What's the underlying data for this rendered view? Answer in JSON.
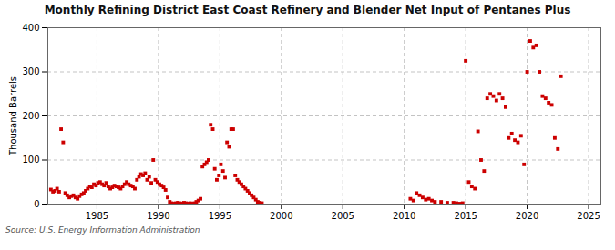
{
  "chart_data": {
    "type": "scatter",
    "title": "Monthly Refining District East Coast Refinery and Blender Net Input of Pentanes Plus",
    "ylabel": "Thousand Barrels",
    "annotations": [
      "Source: U.S. Energy Information Administration"
    ],
    "color": "#cc0000",
    "marker": "square",
    "grid": true,
    "xlim": [
      1981.0,
      2026.0
    ],
    "ylim": [
      0,
      400
    ],
    "xticks": [
      1985,
      1990,
      1995,
      2000,
      2005,
      2010,
      2015,
      2020,
      2025
    ],
    "yticks": [
      0,
      100,
      200,
      300,
      400
    ],
    "x": [
      1981.25,
      1981.42,
      1981.58,
      1981.75,
      1981.92,
      1982.08,
      1982.25,
      1982.42,
      1982.58,
      1982.75,
      1982.92,
      1983.08,
      1983.25,
      1983.42,
      1983.58,
      1983.75,
      1983.92,
      1984.08,
      1984.25,
      1984.42,
      1984.58,
      1984.75,
      1984.92,
      1985.08,
      1985.25,
      1985.42,
      1985.58,
      1985.75,
      1985.92,
      1986.08,
      1986.25,
      1986.42,
      1986.58,
      1986.75,
      1986.92,
      1987.08,
      1987.25,
      1987.42,
      1987.58,
      1987.75,
      1987.92,
      1988.08,
      1988.25,
      1988.42,
      1988.58,
      1988.75,
      1988.92,
      1989.08,
      1989.25,
      1989.42,
      1989.58,
      1989.75,
      1989.92,
      1990.08,
      1990.25,
      1990.42,
      1990.58,
      1990.75,
      1990.92,
      1991.08,
      1991.25,
      1991.42,
      1991.58,
      1991.75,
      1991.92,
      1992.08,
      1992.25,
      1992.42,
      1992.58,
      1992.75,
      1992.92,
      1993.08,
      1993.25,
      1993.42,
      1993.58,
      1993.75,
      1993.92,
      1994.08,
      1994.25,
      1994.42,
      1994.58,
      1994.75,
      1994.92,
      1995.08,
      1995.25,
      1995.42,
      1995.58,
      1995.75,
      1995.92,
      1996.08,
      1996.25,
      1996.42,
      1996.58,
      1996.75,
      1996.92,
      1997.08,
      1997.25,
      1997.42,
      1997.58,
      1997.75,
      1997.92,
      1998.08,
      1998.25,
      1998.42,
      2010.5,
      2010.75,
      2011.0,
      2011.25,
      2011.5,
      2011.75,
      2012.0,
      2012.25,
      2012.5,
      2013.0,
      2013.5,
      2014.0,
      2014.25,
      2014.5,
      2014.75,
      2015.0,
      2015.25,
      2015.5,
      2015.75,
      2016.0,
      2016.25,
      2016.5,
      2016.75,
      2017.0,
      2017.25,
      2017.5,
      2017.75,
      2018.0,
      2018.25,
      2018.5,
      2018.75,
      2019.0,
      2019.25,
      2019.5,
      2019.75,
      2020.0,
      2020.25,
      2020.5,
      2020.75,
      2021.0,
      2021.25,
      2021.5,
      2021.75,
      2022.0,
      2022.25,
      2022.5,
      2022.75
    ],
    "values": [
      33,
      28,
      30,
      35,
      28,
      170,
      140,
      25,
      20,
      15,
      18,
      20,
      15,
      12,
      18,
      22,
      25,
      30,
      35,
      40,
      38,
      45,
      42,
      48,
      50,
      45,
      42,
      48,
      40,
      35,
      38,
      42,
      40,
      38,
      35,
      40,
      45,
      50,
      45,
      42,
      40,
      35,
      55,
      62,
      68,
      65,
      70,
      55,
      62,
      48,
      100,
      55,
      50,
      45,
      42,
      38,
      32,
      15,
      5,
      2,
      1,
      2,
      3,
      2,
      1,
      3,
      2,
      1,
      2,
      1,
      2,
      5,
      8,
      12,
      85,
      90,
      95,
      100,
      180,
      170,
      80,
      55,
      65,
      90,
      75,
      60,
      140,
      130,
      170,
      170,
      65,
      55,
      50,
      45,
      40,
      35,
      30,
      25,
      20,
      15,
      10,
      5,
      3,
      2,
      12,
      8,
      25,
      20,
      15,
      10,
      12,
      8,
      5,
      5,
      3,
      3,
      2,
      1,
      2,
      325,
      50,
      40,
      35,
      165,
      100,
      75,
      240,
      250,
      245,
      235,
      250,
      240,
      220,
      150,
      160,
      145,
      140,
      155,
      90,
      300,
      370,
      355,
      360,
      300,
      245,
      240,
      230,
      225,
      150,
      125,
      290
    ]
  }
}
